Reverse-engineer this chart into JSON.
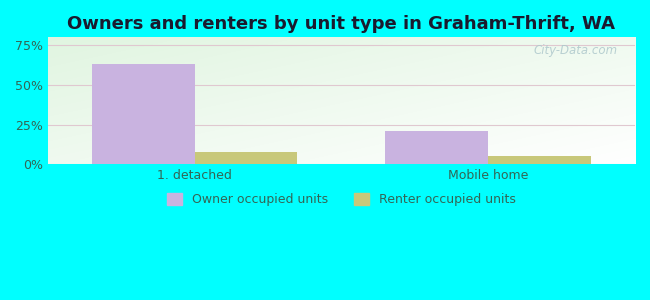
{
  "title": "Owners and renters by unit type in Graham-Thrift, WA",
  "categories": [
    "1. detached",
    "Mobile home"
  ],
  "owner_values": [
    63.0,
    21.0
  ],
  "renter_values": [
    8.0,
    5.5
  ],
  "owner_color": "#c9b3e0",
  "renter_color": "#c8c87a",
  "yticks": [
    0,
    25,
    50,
    75
  ],
  "ytick_labels": [
    "0%",
    "25%",
    "50%",
    "75%"
  ],
  "ylim": [
    0,
    80
  ],
  "bar_width": 0.35,
  "outer_bg": "#00ffff",
  "title_fontsize": 13,
  "legend_label_owner": "Owner occupied units",
  "legend_label_renter": "Renter occupied units",
  "watermark": "City-Data.com",
  "grid_color": "#e0c8d0",
  "tick_color": "#336655"
}
